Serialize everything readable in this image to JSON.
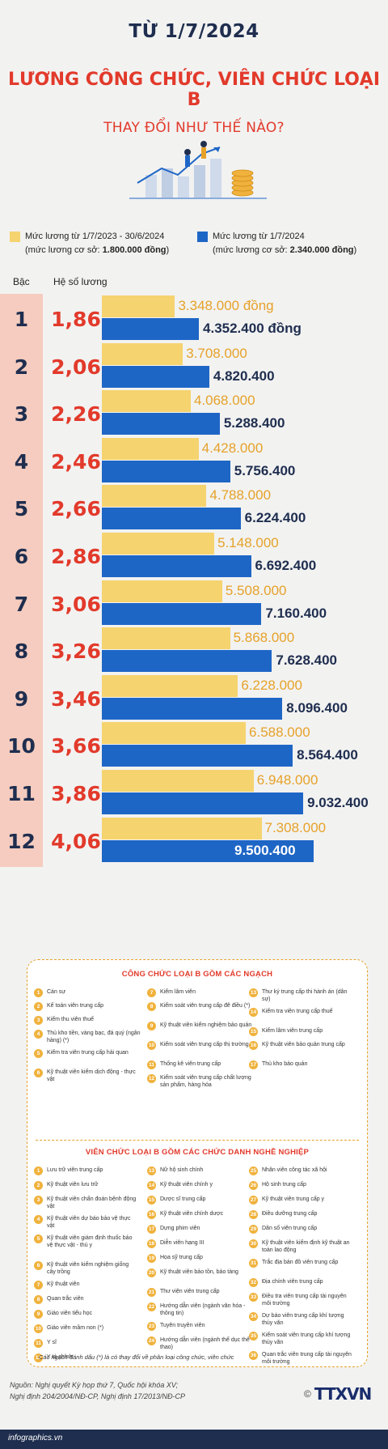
{
  "header": {
    "date": "TỪ 1/7/2024",
    "title": "LƯƠNG CÔNG CHỨC, VIÊN CHỨC LOẠI B",
    "subtitle": "THAY ĐỔI NHƯ THẾ NÀO?"
  },
  "legend": {
    "old_line1": "Mức lương từ 1/7/2023 - 30/6/2024",
    "old_line2_prefix": "(mức lương cơ sở: ",
    "old_line2_value": "1.800.000 đồng",
    "old_line2_suffix": ")",
    "new_line1": "Mức lương từ 1/7/2024",
    "new_line2_prefix": "(mức lương cơ sở: ",
    "new_line2_value": "2.340.000 đồng",
    "new_line2_suffix": ")"
  },
  "colors": {
    "old": "#f5d36f",
    "new": "#1e66c6",
    "accent": "#e23a2b",
    "navy": "#1f2e4f"
  },
  "chart_data": {
    "type": "bar",
    "column_headers": {
      "grade": "Bậc",
      "coefficient": "Hệ số lương"
    },
    "grades": [
      "1",
      "2",
      "3",
      "4",
      "5",
      "6",
      "7",
      "8",
      "9",
      "10",
      "11",
      "12"
    ],
    "coefficients": [
      "1,86",
      "2,06",
      "2,26",
      "2,46",
      "2,66",
      "2,86",
      "3,06",
      "3,26",
      "3,46",
      "3,66",
      "3,86",
      "4,06"
    ],
    "series": [
      {
        "name": "Mức lương từ 1/7/2023 - 30/6/2024",
        "values": [
          3348000,
          3708000,
          4068000,
          4428000,
          4788000,
          5148000,
          5508000,
          5868000,
          6228000,
          6588000,
          6948000,
          7308000
        ]
      },
      {
        "name": "Mức lương từ 1/7/2024",
        "values": [
          4352400,
          4820400,
          5288400,
          5756400,
          6224400,
          6692400,
          7160400,
          7628400,
          8096400,
          8564400,
          9032400,
          9500400
        ]
      }
    ],
    "labels_old": [
      "3.348.000 đồng",
      "3.708.000",
      "4.068.000",
      "4.428.000",
      "4.788.000",
      "5.148.000",
      "5.508.000",
      "5.868.000",
      "6.228.000",
      "6.588.000",
      "6.948.000",
      "7.308.000"
    ],
    "labels_new": [
      "4.352.400 đồng",
      "4.820.400",
      "5.288.400",
      "5.756.400",
      "6.224.400",
      "6.692.400",
      "7.160.400",
      "7.628.400",
      "8.096.400",
      "8.564.400",
      "9.032.400",
      "9.500.400"
    ]
  },
  "cong_chuc": {
    "title": "CÔNG CHỨC LOẠI B GỒM CÁC NGẠCH",
    "items": [
      [
        "1",
        "Cán sự"
      ],
      [
        "2",
        "Kế toán viên trung cấp"
      ],
      [
        "3",
        "Kiểm thu viên thuế"
      ],
      [
        "4",
        "Thủ kho tiền, vàng bạc, đá quý (ngân hàng) (*)"
      ],
      [
        "5",
        "Kiểm tra viên trung cấp hải quan"
      ],
      [
        "6",
        "Kỹ thuật viên kiểm dịch động - thực vật"
      ],
      [
        "7",
        "Kiểm lâm viên"
      ],
      [
        "8",
        "Kiểm soát viên trung cấp đê điều (*)"
      ],
      [
        "9",
        "Kỹ thuật viên kiểm nghiệm bảo quản"
      ],
      [
        "10",
        "Kiểm soát viên trung cấp thị trường"
      ],
      [
        "11",
        "Thống kê viên trung cấp"
      ],
      [
        "12",
        "Kiểm soát viên trung cấp chất lượng sản phẩm, hàng hóa"
      ],
      [
        "13",
        "Thư ký trung cấp thi hành án (dân sự)"
      ],
      [
        "14",
        "Kiểm tra viên trung cấp thuế"
      ],
      [
        "15",
        "Kiểm lâm viên trung cấp"
      ],
      [
        "16",
        "Kỹ thuật viên bảo quản trung cấp"
      ],
      [
        "17",
        "Thủ kho bảo quản"
      ]
    ]
  },
  "vien_chuc": {
    "title": "VIÊN CHỨC LOẠI B GỒM CÁC CHỨC DANH NGHỀ NGHIỆP",
    "items": [
      [
        "1",
        "Lưu trữ viên trung cấp"
      ],
      [
        "2",
        "Kỹ thuật viên lưu trữ"
      ],
      [
        "3",
        "Kỹ thuật viên chẩn đoán bệnh động vật"
      ],
      [
        "4",
        "Kỹ thuật viên dự báo bảo vệ thực vật"
      ],
      [
        "5",
        "Kỹ thuật viên giám định thuốc bảo vệ thực vật - thú y"
      ],
      [
        "6",
        "Kỹ thuật viên kiểm nghiệm giống cây trồng"
      ],
      [
        "7",
        "Kỹ thuật viên"
      ],
      [
        "8",
        "Quan trắc viên"
      ],
      [
        "9",
        "Giáo viên tiểu học"
      ],
      [
        "10",
        "Giáo viên mầm non (*)"
      ],
      [
        "11",
        "Y sĩ"
      ],
      [
        "12",
        "Y tá chính"
      ],
      [
        "13",
        "Nữ hộ sinh chính"
      ],
      [
        "14",
        "Kỹ thuật viên chính y"
      ],
      [
        "15",
        "Dược sĩ trung cấp"
      ],
      [
        "16",
        "Kỹ thuật viên chính dược"
      ],
      [
        "17",
        "Dựng phim viên"
      ],
      [
        "18",
        "Diễn viên hạng III"
      ],
      [
        "19",
        "Họa sỹ trung cấp"
      ],
      [
        "20",
        "Kỹ thuật viên bảo tồn, bảo tàng"
      ],
      [
        "21",
        "Thư viện viên trung cấp"
      ],
      [
        "22",
        "Hướng dẫn viên (ngành văn hóa - thông tin)"
      ],
      [
        "23",
        "Tuyên truyền viên"
      ],
      [
        "24",
        "Hướng dẫn viên (ngành thể dục thể thao)"
      ],
      [
        "25",
        "Nhân viên công tác xã hội"
      ],
      [
        "26",
        "Hộ sinh trung cấp"
      ],
      [
        "27",
        "Kỹ thuật viên trung cấp y"
      ],
      [
        "28",
        "Điều dưỡng trung cấp"
      ],
      [
        "29",
        "Dân số viên trung cấp"
      ],
      [
        "30",
        "Kỹ thuật viên kiểm định kỹ thuật an toàn lao động"
      ],
      [
        "31",
        "Trắc địa bản đồ viên trung cấp"
      ],
      [
        "32",
        "Địa chính viên trung cấp"
      ],
      [
        "33",
        "Điều tra viên trung cấp tài nguyên môi trường"
      ],
      [
        "34",
        "Dự báo viên trung cấp khí tượng thủy văn"
      ],
      [
        "35",
        "Kiểm soát viên trung cấp khí tượng thủy văn"
      ],
      [
        "36",
        "Quan trắc viên trung cấp tài nguyên môi trường"
      ]
    ],
    "note": "Các ngạch đánh dấu (*) là có thay đổi về phân loại công chức, viên chức"
  },
  "source": {
    "line1": "Nguồn: Nghị quyết Kỳ họp thứ 7, Quốc hội khóa XV;",
    "line2": "Nghị định 204/2004/NĐ-CP, Nghị định 17/2013/NĐ-CP"
  },
  "logo": {
    "copyright": "©",
    "name": "TTXVN"
  },
  "footer": {
    "site": "infographics.vn"
  }
}
